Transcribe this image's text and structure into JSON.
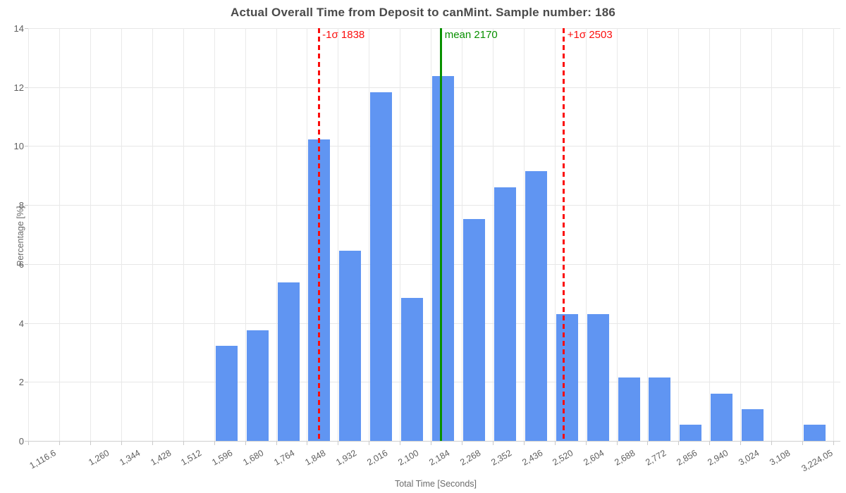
{
  "title": "Actual Overall Time from Deposit to canMint. Sample number: 186",
  "chart_data": {
    "type": "bar",
    "title": "Actual Overall Time from Deposit to canMint. Sample number: 186",
    "xlabel": "Total Time [Seconds]",
    "ylabel": "Percentage [%]",
    "sample_number": 186,
    "ylim": [
      0,
      14
    ],
    "yticks": [
      "0",
      "2",
      "4",
      "6",
      "8",
      "10",
      "12",
      "14"
    ],
    "grid": true,
    "bar_color": "#6095f2",
    "bin_width_seconds": 84,
    "x_ticks": [
      {
        "label": "1,116.6",
        "value": 1116.6
      },
      {
        "label": "1,260",
        "value": 1260
      },
      {
        "label": "1,344",
        "value": 1344
      },
      {
        "label": "1,428",
        "value": 1428
      },
      {
        "label": "1,512",
        "value": 1512
      },
      {
        "label": "1,596",
        "value": 1596
      },
      {
        "label": "1,680",
        "value": 1680
      },
      {
        "label": "1,764",
        "value": 1764
      },
      {
        "label": "1,848",
        "value": 1848
      },
      {
        "label": "1,932",
        "value": 1932
      },
      {
        "label": "2,016",
        "value": 2016
      },
      {
        "label": "2,100",
        "value": 2100
      },
      {
        "label": "2,184",
        "value": 2184
      },
      {
        "label": "2,268",
        "value": 2268
      },
      {
        "label": "2,352",
        "value": 2352
      },
      {
        "label": "2,436",
        "value": 2436
      },
      {
        "label": "2,520",
        "value": 2520
      },
      {
        "label": "2,604",
        "value": 2604
      },
      {
        "label": "2,688",
        "value": 2688
      },
      {
        "label": "2,772",
        "value": 2772
      },
      {
        "label": "2,856",
        "value": 2856
      },
      {
        "label": "2,940",
        "value": 2940
      },
      {
        "label": "3,024",
        "value": 3024
      },
      {
        "label": "3,108",
        "value": 3108
      },
      {
        "label": "3,224.05",
        "value": 3224.05
      }
    ],
    "bars": [
      {
        "tick_label": "1,596",
        "x": 1596,
        "count": 6,
        "pct": 3.23
      },
      {
        "tick_label": "1,680",
        "x": 1680,
        "count": 7,
        "pct": 3.76
      },
      {
        "tick_label": "1,764",
        "x": 1764,
        "count": 10,
        "pct": 5.38
      },
      {
        "tick_label": "1,848",
        "x": 1848,
        "count": 19,
        "pct": 10.22
      },
      {
        "tick_label": "1,932",
        "x": 1932,
        "count": 12,
        "pct": 6.45
      },
      {
        "tick_label": "2,016",
        "x": 2016,
        "count": 22,
        "pct": 11.83
      },
      {
        "tick_label": "2,100",
        "x": 2100,
        "count": 9,
        "pct": 4.84
      },
      {
        "tick_label": "2,184",
        "x": 2184,
        "count": 23,
        "pct": 12.37
      },
      {
        "tick_label": "2,268",
        "x": 2268,
        "count": 14,
        "pct": 7.53
      },
      {
        "tick_label": "2,352",
        "x": 2352,
        "count": 16,
        "pct": 8.6
      },
      {
        "tick_label": "2,436",
        "x": 2436,
        "count": 17,
        "pct": 9.14
      },
      {
        "tick_label": "2,520",
        "x": 2520,
        "count": 8,
        "pct": 4.3
      },
      {
        "tick_label": "2,604",
        "x": 2604,
        "count": 8,
        "pct": 4.3
      },
      {
        "tick_label": "2,688",
        "x": 2688,
        "count": 4,
        "pct": 2.15
      },
      {
        "tick_label": "2,772",
        "x": 2772,
        "count": 4,
        "pct": 2.15
      },
      {
        "tick_label": "2,856",
        "x": 2856,
        "count": 1,
        "pct": 0.54
      },
      {
        "tick_label": "2,940",
        "x": 2940,
        "count": 3,
        "pct": 1.61
      },
      {
        "tick_label": "3,024",
        "x": 3024,
        "count": 2,
        "pct": 1.08
      },
      {
        "tick_label": "3,108",
        "x": 3108,
        "count": 0,
        "pct": 0
      },
      {
        "tick_label": "3,224.05",
        "x": 3192,
        "count": 1,
        "pct": 0.54
      }
    ],
    "annotations": [
      {
        "label": "-1σ 1838",
        "value": 1838,
        "color": "#fb0d0c",
        "style": "dashed"
      },
      {
        "label": "mean 2170",
        "value": 2170,
        "color": "#089000",
        "style": "solid"
      },
      {
        "label": "+1σ 2503",
        "value": 2503,
        "color": "#fb0d0c",
        "style": "dashed"
      }
    ]
  }
}
